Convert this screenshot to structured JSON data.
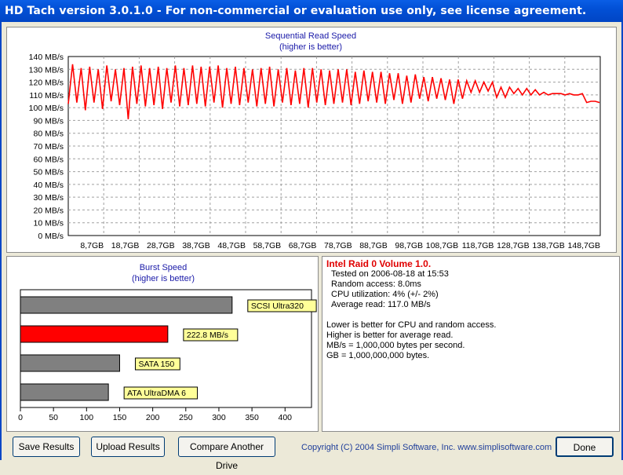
{
  "window": {
    "title": "HD Tach version 3.0.1.0  - For non-commercial or evaluation use only, see license agreement."
  },
  "read_chart": {
    "title": "Sequential Read Speed",
    "subtitle": "(higher is better)",
    "y_ticks": [
      "140 MB/s",
      "130 MB/s",
      "120 MB/s",
      "110 MB/s",
      "100 MB/s",
      "90 MB/s",
      "80 MB/s",
      "70 MB/s",
      "60 MB/s",
      "50 MB/s",
      "40 MB/s",
      "30 MB/s",
      "20 MB/s",
      "10 MB/s",
      "0 MB/s"
    ],
    "x_ticks": [
      "8,7GB",
      "18,7GB",
      "28,7GB",
      "38,7GB",
      "48,7GB",
      "58,7GB",
      "68,7GB",
      "78,7GB",
      "88,7GB",
      "98,7GB",
      "108,7GB",
      "118,7GB",
      "128,7GB",
      "138,7GB",
      "148,7GB"
    ],
    "line_color": "#ff0000"
  },
  "burst_chart": {
    "title": "Burst Speed",
    "subtitle": "(higher is better)",
    "x_ticks": [
      "0",
      "50",
      "100",
      "150",
      "200",
      "250",
      "300",
      "350",
      "400"
    ],
    "bars": [
      {
        "label": "SCSI Ultra320",
        "value": 320,
        "color": "#808080"
      },
      {
        "label": "222.8 MB/s",
        "value": 222.8,
        "color": "#ff0000"
      },
      {
        "label": "SATA 150",
        "value": 150,
        "color": "#808080"
      },
      {
        "label": "ATA UltraDMA 6",
        "value": 133,
        "color": "#808080"
      }
    ]
  },
  "chart_data": [
    {
      "type": "line",
      "title": "Sequential Read Speed",
      "subtitle": "(higher is better)",
      "xlabel": "",
      "ylabel": "",
      "ylim": [
        0,
        140
      ],
      "x_unit": "GB",
      "xlim": [
        0,
        149
      ],
      "grid": true,
      "series": [
        {
          "color": "#ff0000",
          "x": [
            0,
            1.2,
            2.4,
            3.6,
            4.8,
            6.0,
            7.2,
            8.4,
            9.6,
            10.8,
            12.0,
            13.2,
            14.4,
            15.6,
            16.8,
            18.0,
            19.2,
            20.4,
            21.6,
            22.8,
            24.0,
            25.2,
            26.4,
            27.6,
            28.8,
            30.0,
            31.2,
            32.4,
            33.6,
            34.8,
            36.0,
            37.2,
            38.4,
            39.6,
            40.8,
            42.0,
            43.2,
            44.4,
            45.6,
            46.8,
            48.0,
            49.2,
            50.4,
            51.6,
            52.8,
            54.0,
            55.2,
            56.4,
            57.6,
            58.8,
            60.0,
            61.2,
            62.4,
            63.6,
            64.8,
            66.0,
            67.2,
            68.4,
            69.6,
            70.8,
            72.0,
            73.2,
            74.4,
            75.6,
            76.8,
            78.0,
            79.2,
            80.4,
            81.6,
            82.8,
            84.0,
            85.2,
            86.4,
            87.6,
            88.8,
            90.0,
            91.2,
            92.4,
            93.6,
            94.8,
            96.0,
            97.2,
            98.4,
            99.6,
            100.8,
            102.0,
            103.2,
            104.4,
            105.6,
            106.8,
            108.0,
            109.2,
            110.4,
            111.6,
            112.8,
            114.0,
            115.2,
            116.4,
            117.6,
            118.8,
            120.0,
            121.2,
            122.4,
            123.6,
            124.8,
            126.0,
            127.2,
            128.4,
            129.6,
            130.8,
            132.0,
            133.2,
            134.4,
            135.6,
            136.8,
            138.0,
            139.2,
            140.4,
            141.6,
            142.8,
            144.0,
            145.2,
            146.4,
            147.6,
            148.8
          ],
          "y": [
            103,
            134,
            104,
            131,
            98,
            132,
            104,
            130,
            99,
            133,
            105,
            130,
            102,
            131,
            91,
            132,
            103,
            133,
            101,
            131,
            102,
            132,
            99,
            131,
            104,
            133,
            101,
            131,
            102,
            133,
            103,
            132,
            101,
            132,
            104,
            133,
            100,
            131,
            103,
            132,
            102,
            131,
            104,
            130,
            101,
            131,
            103,
            132,
            101,
            130,
            104,
            131,
            102,
            129,
            103,
            131,
            100,
            131,
            104,
            130,
            102,
            129,
            103,
            130,
            104,
            130,
            102,
            128,
            103,
            129,
            105,
            128,
            104,
            128,
            103,
            127,
            106,
            127,
            103,
            125,
            104,
            126,
            107,
            124,
            105,
            124,
            107,
            123,
            106,
            122,
            103,
            122,
            107,
            121,
            112,
            121,
            112,
            120,
            113,
            120,
            108,
            116,
            108,
            116,
            111,
            115,
            110,
            115,
            110,
            114,
            110,
            112,
            110,
            111,
            111,
            111,
            110,
            111,
            110,
            110,
            111,
            104,
            105,
            105,
            104
          ]
        }
      ]
    },
    {
      "type": "bar",
      "title": "Burst Speed",
      "subtitle": "(higher is better)",
      "categories": [
        "SCSI Ultra320",
        "222.8 MB/s",
        "SATA 150",
        "ATA UltraDMA 6"
      ],
      "values": [
        320,
        222.8,
        150,
        133
      ],
      "xlim": [
        0,
        440
      ],
      "orientation": "horizontal"
    }
  ],
  "info": {
    "drive_name": "Intel Raid 0 Volume 1.0.",
    "tested_on": "Tested on 2006-08-18 at 15:53",
    "random_access": "Random access: 8.0ms",
    "cpu_utilization": "CPU utilization: 4% (+/- 2%)",
    "average_read": "Average read: 117.0 MB/s",
    "note1": "Lower is better for CPU and random access.",
    "note2": "Higher is better for average read.",
    "note3": "MB/s = 1,000,000 bytes per second.",
    "note4": "GB = 1,000,000,000 bytes."
  },
  "buttons": {
    "save": "Save Results",
    "upload": "Upload Results",
    "compare": "Compare Another Drive",
    "done": "Done"
  },
  "copyright": "Copyright (C) 2004 Simpli Software, Inc. www.simplisoftware.com"
}
